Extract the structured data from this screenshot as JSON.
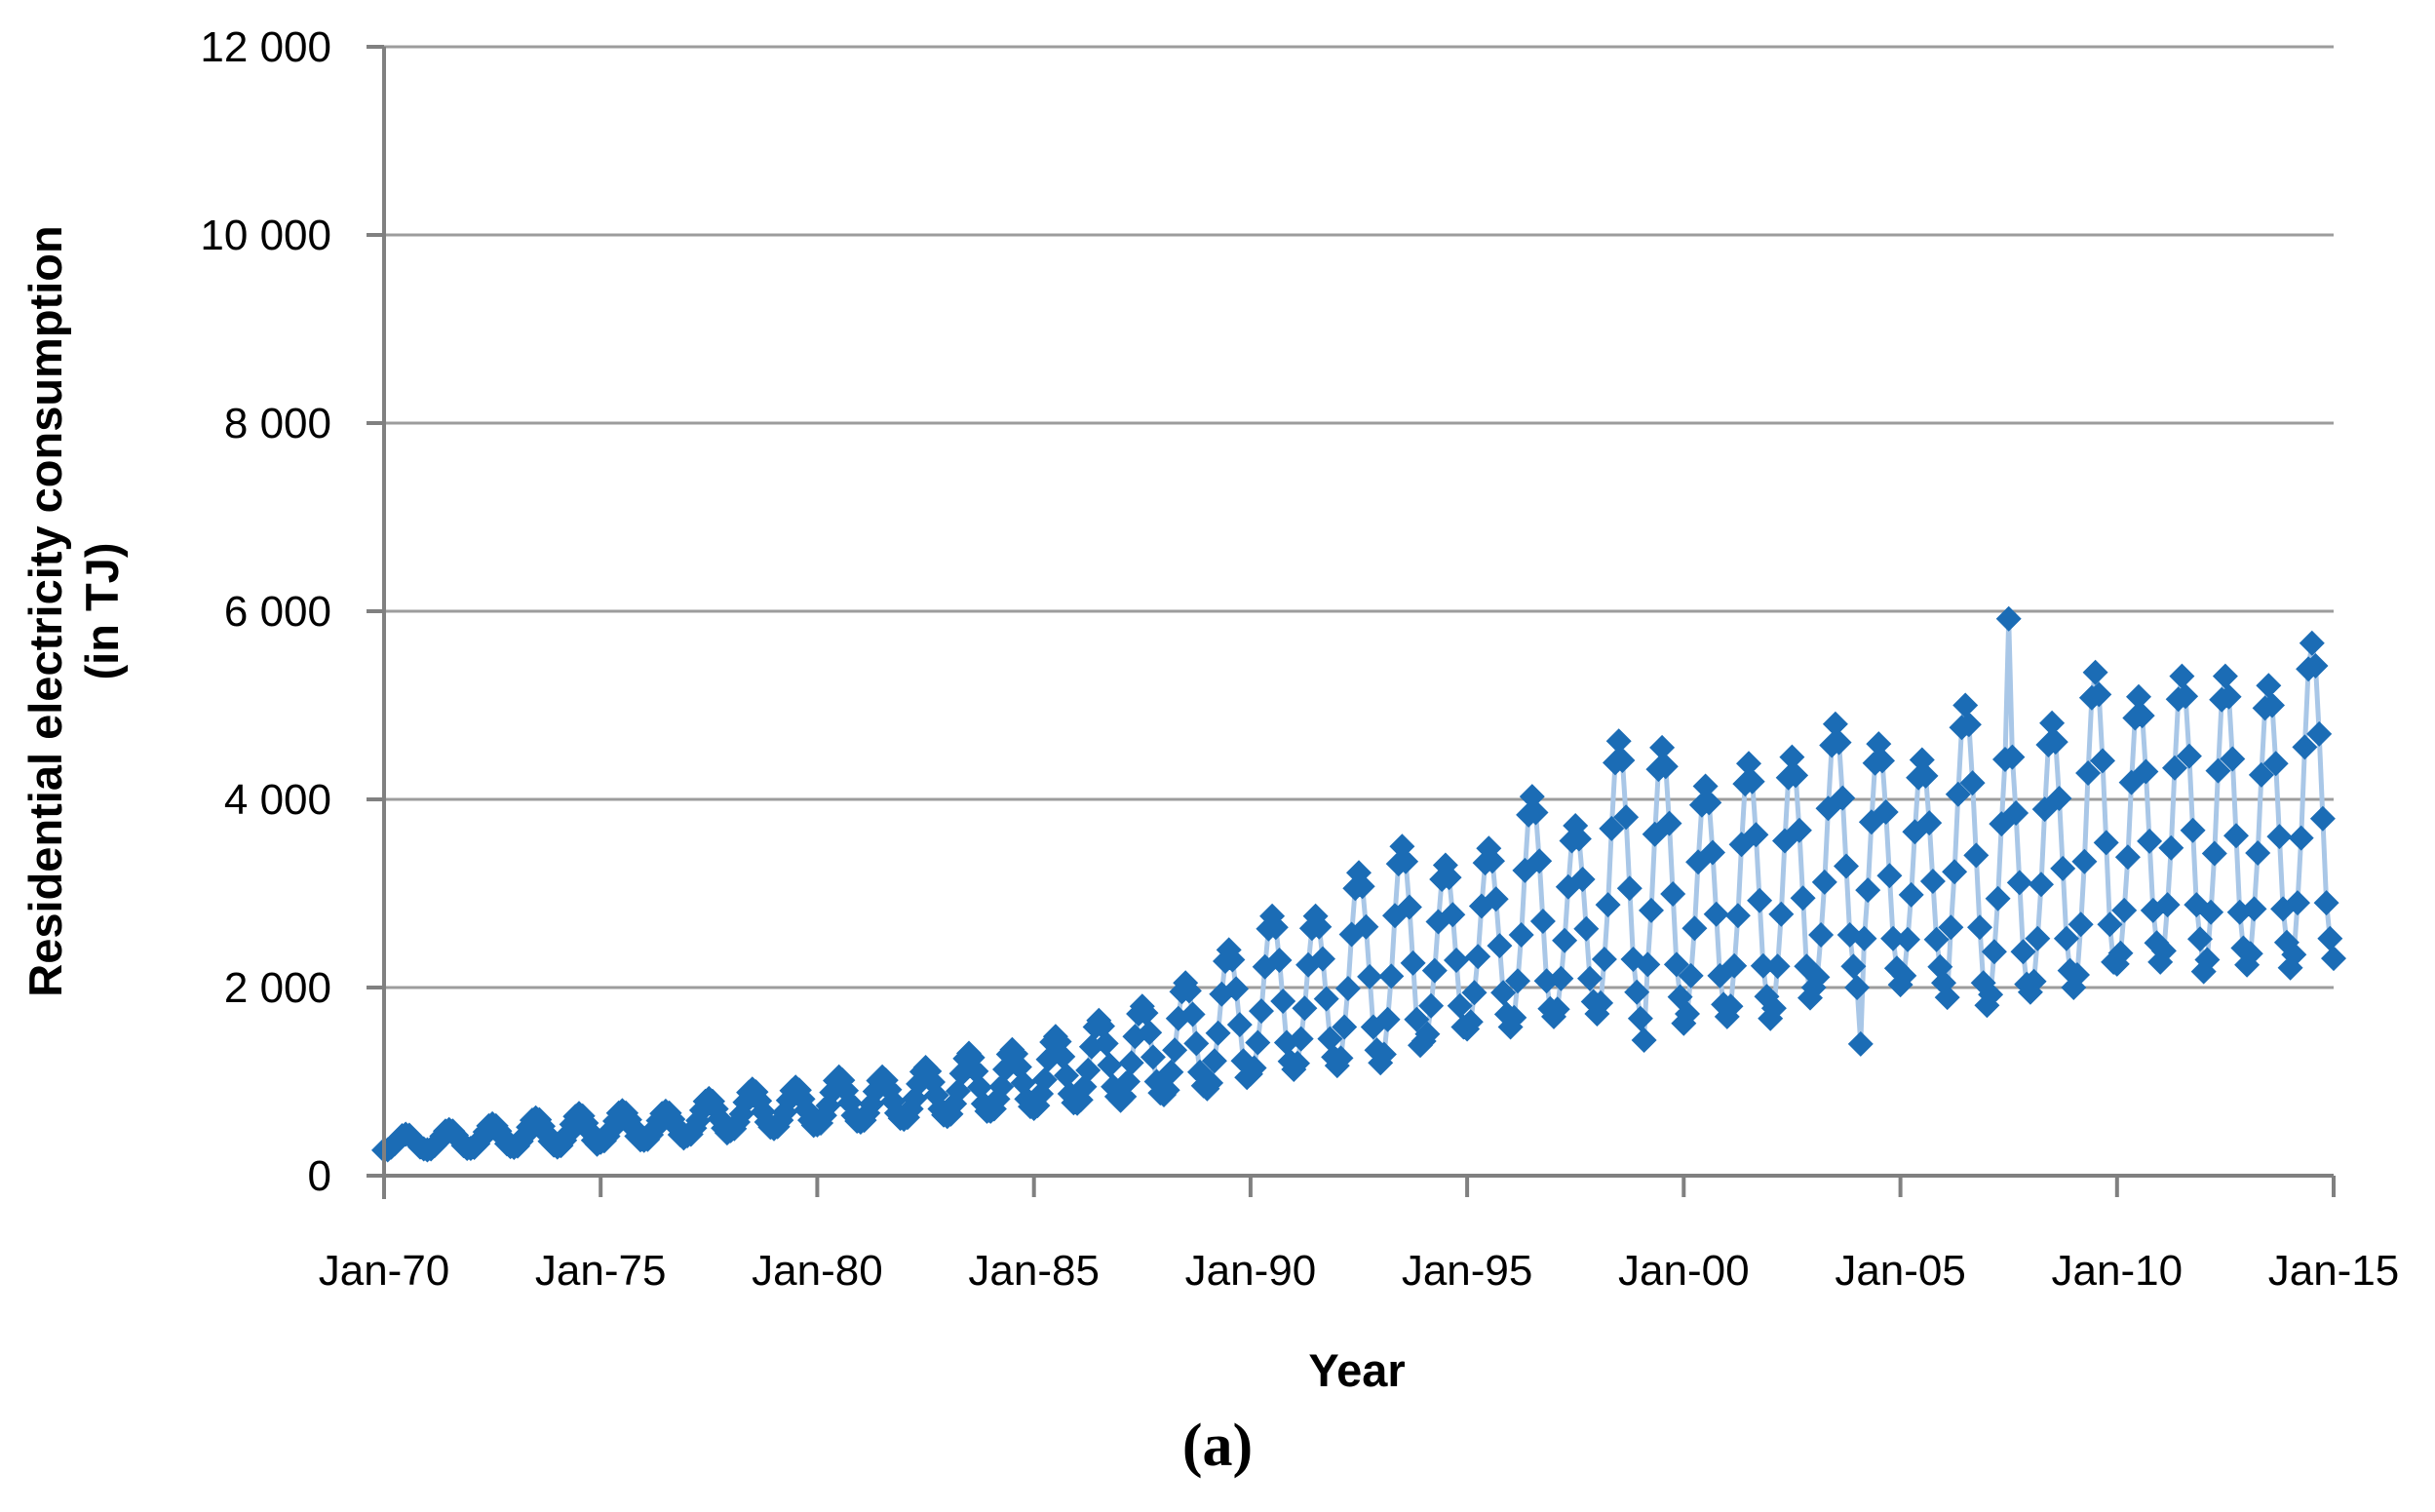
{
  "figure": {
    "caption": "(a)",
    "background": "#ffffff"
  },
  "chart": {
    "type": "line-with-diamond-markers",
    "colors": {
      "marker": "#1b6cb5",
      "line": "#a9c7e7",
      "gridline": "#9c9c9c",
      "axis": "#808080",
      "text": "#000000"
    },
    "y_axis": {
      "title_line1": "Residential electricity consumption",
      "title_line2": "(in TJ)",
      "tick_labels": [
        "0",
        "2 000",
        "4 000",
        "6 000",
        "8 000",
        "10 000",
        "12 000"
      ],
      "tick_values": [
        0,
        2000,
        4000,
        6000,
        8000,
        10000,
        12000
      ],
      "min": 0,
      "max": 12000
    },
    "x_axis": {
      "title": "Year",
      "tick_labels": [
        "Jan-70",
        "Jan-75",
        "Jan-80",
        "Jan-85",
        "Jan-90",
        "Jan-95",
        "Jan-00",
        "Jan-05",
        "Jan-10",
        "Jan-15"
      ],
      "tick_month_indices": [
        0,
        60,
        120,
        180,
        240,
        300,
        360,
        420,
        480,
        540
      ]
    }
  },
  "chart_data": {
    "type": "line",
    "title": "",
    "xlabel": "Year",
    "ylabel": "Residential electricity consumption (in TJ)",
    "ylim": [
      0,
      12000
    ],
    "x_start": "Jan-1970",
    "x_end": "Jan-2015",
    "frequency": "monthly",
    "grid": "horizontal",
    "legend": "none",
    "marker": "diamond",
    "series_name": "Residential electricity consumption (TJ)",
    "values": [
      270,
      275,
      305,
      340,
      385,
      425,
      440,
      430,
      390,
      350,
      305,
      285,
      275,
      285,
      320,
      360,
      420,
      475,
      490,
      475,
      430,
      375,
      320,
      290,
      290,
      300,
      340,
      395,
      465,
      530,
      550,
      530,
      475,
      410,
      340,
      310,
      300,
      315,
      365,
      425,
      515,
      590,
      615,
      595,
      525,
      445,
      365,
      325,
      305,
      320,
      375,
      445,
      545,
      630,
      660,
      635,
      560,
      470,
      375,
      335,
      355,
      370,
      420,
      490,
      580,
      665,
      690,
      665,
      595,
      510,
      420,
      380,
      375,
      385,
      435,
      500,
      585,
      660,
      685,
      665,
      600,
      520,
      435,
      400,
      425,
      440,
      505,
      585,
      695,
      790,
      820,
      790,
      710,
      605,
      505,
      455,
      480,
      500,
      570,
      655,
      780,
      885,
      920,
      890,
      795,
      680,
      570,
      515,
      500,
      520,
      590,
      675,
      800,
      905,
      940,
      910,
      815,
      700,
      590,
      535,
      540,
      560,
      640,
      745,
      885,
      1010,
      1050,
      1015,
      905,
      775,
      640,
      580,
      570,
      590,
      665,
      760,
      895,
      1010,
      1050,
      1015,
      915,
      790,
      665,
      610,
      600,
      620,
      710,
      820,
      975,
      1105,
      1150,
      1110,
      995,
      855,
      710,
      645,
      630,
      655,
      765,
      900,
      1085,
      1245,
      1300,
      1255,
      1110,
      940,
      765,
      685,
      685,
      710,
      815,
      945,
      1130,
      1290,
      1340,
      1295,
      1155,
      985,
      815,
      735,
      715,
      745,
      870,
      1020,
      1235,
      1420,
      1480,
      1425,
      1265,
      1065,
      870,
      775,
      770,
      805,
      945,
      1120,
      1370,
      1580,
      1650,
      1590,
      1405,
      1175,
      945,
      840,
      800,
      840,
      1000,
      1200,
      1480,
      1720,
      1800,
      1730,
      1520,
      1260,
      1000,
      880,
      860,
      910,
      1100,
      1335,
      1670,
      1955,
      2050,
      1965,
      1715,
      1405,
      1100,
      955,
      925,
      985,
      1220,
      1515,
      1930,
      2280,
      2400,
      2295,
      1985,
      1605,
      1220,
      1045,
      1080,
      1145,
      1415,
      1750,
      2220,
      2625,
      2760,
      2640,
      2290,
      1855,
      1415,
      1215,
      1130,
      1195,
      1455,
      1780,
      2240,
      2630,
      2760,
      2645,
      2305,
      1880,
      1455,
      1260,
      1170,
      1250,
      1580,
      1990,
      2565,
      3055,
      3220,
      3075,
      2645,
      2115,
      1580,
      1335,
      1200,
      1290,
      1660,
      2120,
      2765,
      3315,
      3500,
      3340,
      2855,
      2260,
      1660,
      1385,
      1430,
      1505,
      1805,
      2180,
      2700,
      3150,
      3300,
      3170,
      2775,
      2290,
      1805,
      1580,
      1560,
      1635,
      1945,
      2330,
      2865,
      3325,
      3480,
      3345,
      2940,
      2445,
      1945,
      1715,
      1580,
      1680,
      2070,
      2560,
      3245,
      3835,
      4030,
      3860,
      3345,
      2705,
      2070,
      1775,
      1690,
      1770,
      2095,
      2500,
      3070,
      3560,
      3720,
      3580,
      3150,
      2625,
      2095,
      1850,
      1720,
      1835,
      2300,
      2880,
      3690,
      4390,
      4620,
      4415,
      3810,
      3055,
      2300,
      1950,
      1670,
      1440,
      2245,
      2820,
      3630,
      4320,
      4550,
      4350,
      3745,
      2995,
      2245,
      1900,
      1620,
      1720,
      2125,
      2630,
      3335,
      3940,
      4140,
      3965,
      3435,
      2780,
      2125,
      1820,
      1690,
      1800,
      2230,
      2765,
      3520,
      4165,
      4380,
      4190,
      3625,
      2925,
      2230,
      1905,
      1670,
      1780,
      2225,
      2780,
      3560,
      4230,
      4450,
      4255,
      3670,
      2950,
      2225,
      1890,
      2000,
      2110,
      2560,
      3120,
      3905,
      4575,
      4800,
      4605,
      4015,
      3290,
      2560,
      2225,
      2000,
      1400,
      2520,
      3035,
      3760,
      4385,
      4590,
      4410,
      3865,
      3190,
      2520,
      2205,
      2030,
      2125,
      2510,
      2985,
      3655,
      4230,
      4420,
      4250,
      3750,
      3130,
      2510,
      2220,
      2050,
      1895,
      2640,
      3230,
      4055,
      4765,
      5000,
      4795,
      4175,
      3405,
      2640,
      2050,
      1810,
      1925,
      2380,
      2945,
      3740,
      4425,
      5920,
      4450,
      3855,
      3115,
      2380,
      2035,
      1950,
      2065,
      2520,
      3095,
      3895,
      4580,
      4810,
      4610,
      4010,
      3265,
      2520,
      2180,
      2000,
      2135,
      2670,
      3340,
      4280,
      5080,
      5350,
      5115,
      4410,
      3540,
      2670,
      2270,
      2250,
      2365,
      2820,
      3385,
      4180,
      4865,
      5090,
      4890,
      4295,
      3555,
      2820,
      2475,
      2270,
      2390,
      2880,
      3485,
      4335,
      5065,
      5310,
      5095,
      4460,
      3670,
      2880,
      2515,
      2170,
      2295,
      2800,
      3425,
      4305,
      5060,
      5310,
      5090,
      4430,
      3615,
      2800,
      2420,
      2240,
      2360,
      2835,
      3430,
      4260,
      4970,
      5210,
      5000,
      4380,
      3605,
      2835,
      2480,
      2210,
      2350,
      2900,
      3590,
      4555,
      5385,
      5660,
      5420,
      4695,
      3795,
      2900,
      2520,
      2310
    ]
  }
}
